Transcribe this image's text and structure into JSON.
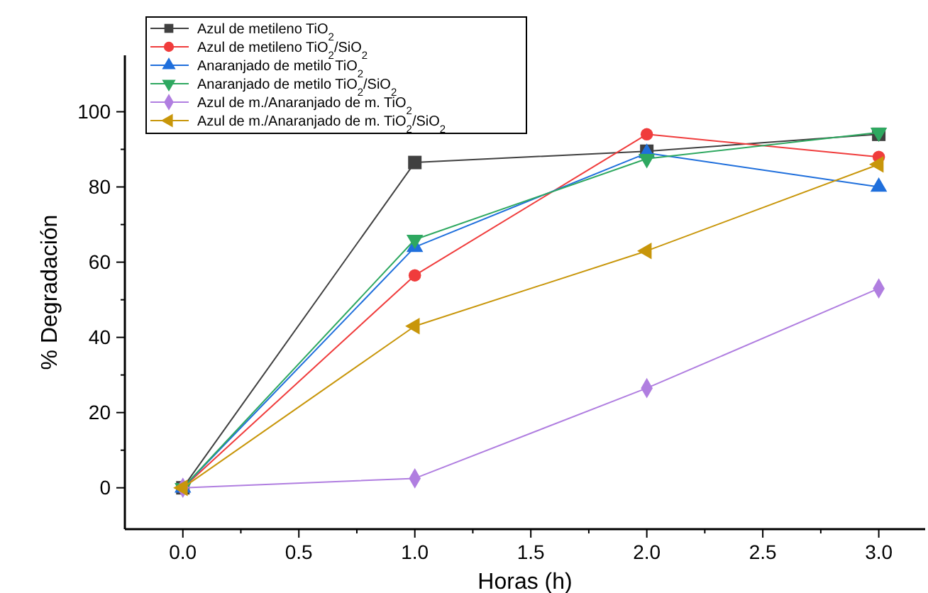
{
  "chart_data": {
    "type": "line",
    "xlabel": "Horas (h)",
    "ylabel": "% Degradación",
    "x": [
      0,
      1,
      2,
      3
    ],
    "series": [
      {
        "name": "Azul de metileno TiO$_{2}$",
        "color": "#404040",
        "marker": "square",
        "values": [
          0,
          86.5,
          89.5,
          94
        ]
      },
      {
        "name": "Azul de metileno TiO$_{2}$/SiO$_{2}$",
        "color": "#f03c3c",
        "marker": "circle",
        "values": [
          0,
          56.5,
          94,
          88
        ]
      },
      {
        "name": "Anaranjado de metilo TiO$_{2}$",
        "color": "#1f6fdc",
        "marker": "triangle",
        "values": [
          0,
          64,
          89,
          80
        ]
      },
      {
        "name": "Anaranjado de metilo TiO$_{2}$/SiO$_{2}$",
        "color": "#2ea860",
        "marker": "triangle-down",
        "values": [
          0,
          66,
          87.5,
          94.5
        ]
      },
      {
        "name": "Azul de m./Anaranjado de m. TiO$_{2}$",
        "color": "#b07ee0",
        "marker": "diamond",
        "values": [
          0,
          2.5,
          26.5,
          53
        ]
      },
      {
        "name": "Azul de m./Anaranjado de m. TiO$_{2}$/SiO$_{2}$",
        "color": "#c8960a",
        "marker": "triangle-left",
        "values": [
          0,
          43,
          63,
          86
        ]
      }
    ],
    "xlim": [
      -0.25,
      3.2
    ],
    "ylim": [
      -11,
      115
    ],
    "xticks": [
      {
        "value": 0,
        "label": "0.0"
      },
      {
        "value": 0.25,
        "label": null
      },
      {
        "value": 0.5,
        "label": "0.5"
      },
      {
        "value": 0.75,
        "label": null
      },
      {
        "value": 1,
        "label": "1.0"
      },
      {
        "value": 1.25,
        "label": null
      },
      {
        "value": 1.5,
        "label": "1.5"
      },
      {
        "value": 1.75,
        "label": null
      },
      {
        "value": 2,
        "label": "2.0"
      },
      {
        "value": 2.25,
        "label": null
      },
      {
        "value": 2.5,
        "label": "2.5"
      },
      {
        "value": 2.75,
        "label": null
      },
      {
        "value": 3,
        "label": "3.0"
      }
    ],
    "yticks": [
      0,
      {
        "value": 10,
        "label": null
      },
      20,
      {
        "value": 30,
        "label": null
      },
      40,
      {
        "value": 50,
        "label": null
      },
      60,
      {
        "value": 70,
        "label": null
      },
      80,
      {
        "value": 90,
        "label": null
      },
      100
    ],
    "legend": "top left",
    "grid": false
  }
}
